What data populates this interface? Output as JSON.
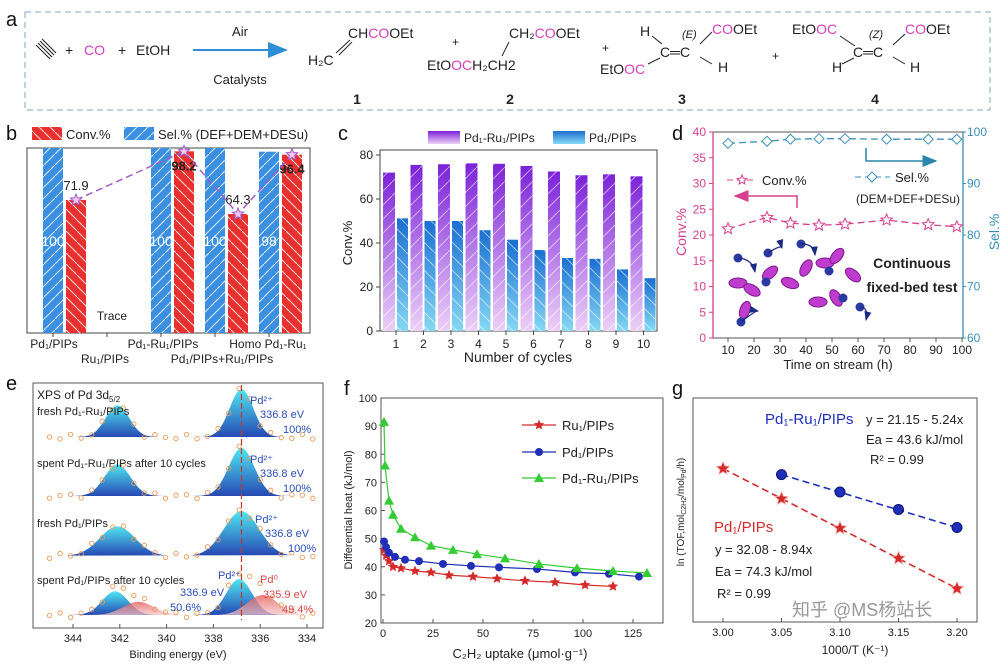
{
  "panel_labels": {
    "a": "a",
    "b": "b",
    "c": "c",
    "d": "d",
    "e": "e",
    "f": "f",
    "g": "g"
  },
  "scheme": {
    "alkyne": "≡",
    "plus": "+",
    "co": "CO",
    "etoh": "EtOH",
    "arrow_top": "Air",
    "arrow_bottom": "Catalysts",
    "arrow_color": "#2f8fd6",
    "highlight_color": "#d63fb8",
    "product1": {
      "top": [
        "CH",
        "CO",
        "OEt"
      ],
      "bottom": "H₂C",
      "number": "1"
    },
    "product2": {
      "top": [
        "CH₂",
        "CO",
        "OEt"
      ],
      "bottom": [
        "EtO",
        "OC",
        "H₂CH2"
      ],
      "number": "2"
    },
    "product3": {
      "h_top": "H",
      "stereo": "(E)",
      "alkene": "C═C",
      "top_right": [
        "CO",
        "OEt"
      ],
      "bottom_left": [
        "EtO",
        "OC"
      ],
      "h_bottom": "H",
      "number": "3"
    },
    "product4": {
      "top_left": [
        "EtO",
        "OC"
      ],
      "stereo": "(Z)",
      "alkene": "C═C",
      "top_right": [
        "CO",
        "OEt"
      ],
      "h_left": "H",
      "h_right": "H",
      "number": "4"
    }
  },
  "chart_data": [
    {
      "panel": "b",
      "type": "bar",
      "categories": [
        "Pd₁/PIPs",
        "Ru₁/PIPs",
        "Pd₁-Ru₁/PIPs",
        "Pd₁/PIPs+Ru₁/PIPs",
        "Homo Pd₁-Ru₁"
      ],
      "series": [
        {
          "name": "Sel.% (DEF+DEM+DESu)",
          "values": [
            100,
            null,
            100,
            100,
            98
          ],
          "labels": [
            "100",
            "",
            "100",
            "100",
            "98"
          ],
          "color": "#3a8fe0"
        },
        {
          "name": "Conv.%",
          "values": [
            71.9,
            null,
            98.2,
            64.3,
            96.4
          ],
          "labels": [
            "71.9",
            "Trace",
            "98.2",
            "64.3",
            "96.4"
          ],
          "color": "#e8302f"
        }
      ],
      "ylim": [
        0,
        100
      ],
      "trend_line_color": "#a05cc8",
      "legend": "top"
    },
    {
      "panel": "c",
      "type": "bar",
      "categories": [
        "1",
        "2",
        "3",
        "4",
        "5",
        "6",
        "7",
        "8",
        "9",
        "10"
      ],
      "series": [
        {
          "name": "Pd₁-Ru₁/PIPs",
          "values": [
            72,
            75.5,
            75.8,
            76.2,
            76,
            75,
            72.5,
            70.8,
            71.2,
            70.3
          ],
          "color": "#8a2be2"
        },
        {
          "name": "Pd₁/PIPs",
          "values": [
            51.2,
            50,
            50,
            45.8,
            41.5,
            36.8,
            33.2,
            32.8,
            28,
            24
          ],
          "color": "#1e7fd0"
        }
      ],
      "xlabel": "Number of cycles",
      "ylabel": "Conv.%",
      "ylim": [
        0,
        80
      ],
      "yticks": [
        "0",
        "20",
        "40",
        "60",
        "80"
      ],
      "legend": "top"
    },
    {
      "panel": "d",
      "type": "line",
      "x": [
        10,
        25,
        34,
        45,
        55,
        71,
        87,
        98
      ],
      "series": [
        {
          "name": "Conv.%",
          "axis": "left",
          "values": [
            21.2,
            23.4,
            22.3,
            21.9,
            22.1,
            22.9,
            22.0,
            21.6
          ],
          "color": "#d6408f",
          "marker": "star"
        },
        {
          "name": "Sel.%",
          "name_line2": "(DEM+DEF+DESu)",
          "axis": "right",
          "values": [
            97.8,
            98.2,
            98.6,
            98.7,
            98.7,
            98.6,
            98.6,
            98.6
          ],
          "color": "#3a8fb5",
          "marker": "diamond"
        }
      ],
      "xlabel": "Time on stream (h)",
      "ylabel_left": "Conv.%",
      "ylabel_right": "Sel.%",
      "xlim": [
        5,
        102
      ],
      "xticks": [
        "10",
        "20",
        "30",
        "40",
        "50",
        "60",
        "70",
        "80",
        "90",
        "100"
      ],
      "ylim_left": [
        0,
        40
      ],
      "yticks_left": [
        "0",
        "5",
        "10",
        "15",
        "20",
        "25",
        "30",
        "35",
        "40"
      ],
      "ylim_right": [
        60,
        100
      ],
      "yticks_right": [
        "60",
        "70",
        "80",
        "90",
        "100"
      ],
      "annotation": [
        "Continuous",
        "fixed-bed test"
      ]
    },
    {
      "panel": "e",
      "type": "area",
      "title": "XPS of Pd 3d",
      "title_sub": "5/2",
      "xlabel": "Binding energy (eV)",
      "xlim": [
        345.2,
        333.5
      ],
      "xticks": [
        "344",
        "342",
        "340",
        "338",
        "336",
        "334"
      ],
      "reference_line_be": 336.8,
      "spectra": [
        {
          "label": "fresh Pd₁-Ru₁/PIPs",
          "components": [
            {
              "state": "Pd²⁺",
              "be": 336.8,
              "be_label": "336.8 eV",
              "percent": 100,
              "percent_label": "100%"
            }
          ]
        },
        {
          "label": "spent Pd₁-Ru₁/PIPs after 10 cycles",
          "components": [
            {
              "state": "Pd²⁺",
              "be": 336.8,
              "be_label": "336.8 eV",
              "percent": 100,
              "percent_label": "100%"
            }
          ]
        },
        {
          "label": "fresh Pd₁/PIPs",
          "components": [
            {
              "state": "Pd²⁺",
              "be": 336.8,
              "be_label": "336.8 eV",
              "percent": 100,
              "percent_label": "100%"
            }
          ]
        },
        {
          "label": "spent Pd₁/PIPs after 10 cycles",
          "components": [
            {
              "state": "Pd²⁺",
              "be": 336.9,
              "be_label": "336.9 eV",
              "percent": 50.6,
              "percent_label": "50.6%"
            },
            {
              "state": "Pd⁰",
              "be": 335.9,
              "be_label": "335.9 eV",
              "percent": 49.4,
              "percent_label": "49.4%"
            }
          ]
        }
      ],
      "colors": {
        "pd2": "#2a4db8",
        "pd0": "#d94848",
        "points": "#e89a5a",
        "reference": "#c0392b"
      }
    },
    {
      "panel": "f",
      "type": "line",
      "xlabel": "C₂H₂ uptake (μmol·g⁻¹)",
      "ylabel": "Differential heat (kJ/mol)",
      "xlim": [
        -1,
        140
      ],
      "xticks": [
        "0",
        "25",
        "50",
        "75",
        "100",
        "125"
      ],
      "ylim": [
        20,
        100
      ],
      "yticks": [
        "20",
        "30",
        "40",
        "50",
        "60",
        "70",
        "80",
        "90",
        "100"
      ],
      "legend": "top-right",
      "series": [
        {
          "name": "Ru₁/PIPs",
          "color": "#d42a2a",
          "marker": "star",
          "x": [
            0.5,
            1.5,
            3,
            5,
            9,
            16,
            24,
            33,
            45,
            57,
            71,
            86,
            101,
            115
          ],
          "y": [
            46,
            44,
            42,
            40,
            39.5,
            38.5,
            38,
            37,
            36.5,
            35.8,
            35,
            34.5,
            33.5,
            33
          ]
        },
        {
          "name": "Pd₁/PIPs",
          "color": "#1f2fb8",
          "marker": "circle",
          "x": [
            0.5,
            1.5,
            3,
            6,
            11,
            18,
            30,
            44,
            58,
            77,
            96,
            113,
            128
          ],
          "y": [
            49,
            47,
            45,
            43.5,
            42.5,
            42,
            41,
            40.3,
            39.8,
            39.2,
            38,
            37.5,
            36.5
          ]
        },
        {
          "name": "Pd₁-Ru₁/PIPs",
          "color": "#33cc33",
          "marker": "triangle",
          "x": [
            0.5,
            1,
            3,
            5,
            9,
            16,
            24,
            35,
            47,
            61,
            78,
            97,
            115,
            132
          ],
          "y": [
            91.5,
            76,
            63.5,
            58.5,
            53.5,
            50.5,
            47.5,
            46,
            44.5,
            43,
            41,
            39.5,
            38.5,
            37.8
          ]
        }
      ]
    },
    {
      "panel": "g",
      "type": "scatter",
      "xlabel": "1000/T (K⁻¹)",
      "ylabel_parts": [
        "ln (TOF,mol",
        "C2H2",
        "/mol",
        "Pd",
        "/h)"
      ],
      "xlim": [
        2.975,
        3.215
      ],
      "xticks": [
        "3.00",
        "3.05",
        "3.10",
        "3.15",
        "3.20"
      ],
      "ylim": [
        3.0,
        6.3
      ],
      "series": [
        {
          "name": "Pd₁-Ru₁/PIPs",
          "color": "#1f2fb8",
          "marker": "circle",
          "x": [
            3.05,
            3.1,
            3.15,
            3.2
          ],
          "y": [
            5.17,
            4.91,
            4.65,
            4.38
          ],
          "fit": "y = 21.15 - 5.24x",
          "ea": "Ea = 43.6 kJ/mol",
          "r2": "R² = 0.99"
        },
        {
          "name": "Pd₁/PIPs",
          "color": "#d42a2a",
          "marker": "star",
          "x": [
            3.0,
            3.05,
            3.1,
            3.15,
            3.2
          ],
          "y": [
            5.26,
            4.81,
            4.37,
            3.92,
            3.47
          ],
          "fit": "y = 32.08 - 8.94x",
          "ea": "Ea = 74.3 kJ/mol",
          "r2": "R² = 0.99"
        }
      ]
    }
  ],
  "watermark": "知乎 @MS杨站长"
}
